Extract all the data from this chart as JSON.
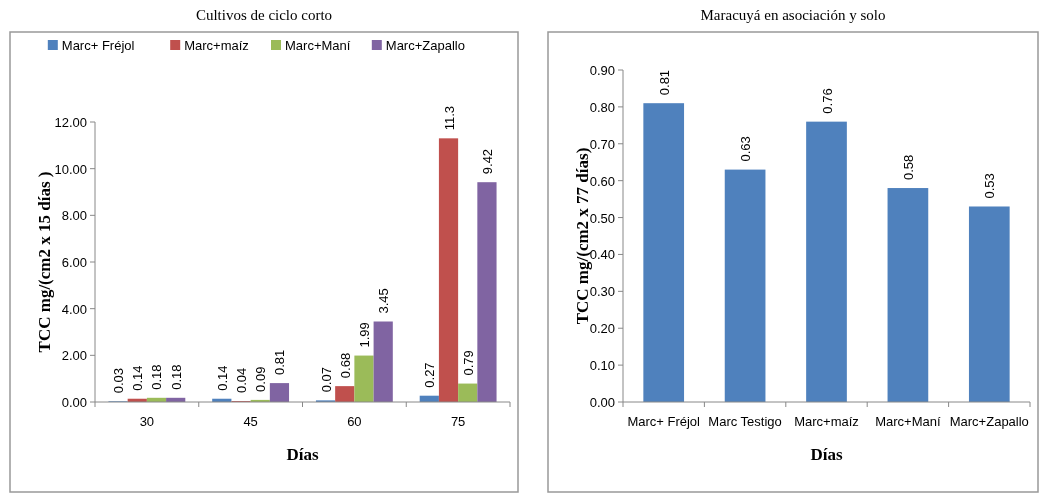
{
  "chart_data": [
    {
      "type": "bar",
      "title": "Cultivos de ciclo corto",
      "xlabel": "Días",
      "ylabel": "TCC  mg/(cm2  x 15 días )",
      "categories": [
        "30",
        "45",
        "60",
        "75"
      ],
      "series": [
        {
          "name": "Marc+ Fréjol",
          "color": "#4f81bd",
          "values": [
            0.03,
            0.14,
            0.07,
            0.27
          ]
        },
        {
          "name": "Marc+maíz",
          "color": "#c0504d",
          "values": [
            0.14,
            0.04,
            0.68,
            11.3
          ]
        },
        {
          "name": "Marc+Maní",
          "color": "#9bbb59",
          "values": [
            0.18,
            0.09,
            1.99,
            0.79
          ]
        },
        {
          "name": "Marc+Zapallo",
          "color": "#8064a2",
          "values": [
            0.18,
            0.81,
            3.45,
            9.42
          ]
        }
      ],
      "ylim": [
        0,
        12
      ],
      "yticks": [
        {
          "value": 0,
          "label": "0.00"
        },
        {
          "value": 2,
          "label": "2.00"
        },
        {
          "value": 4,
          "label": "4.00"
        },
        {
          "value": 6,
          "label": "6.00"
        },
        {
          "value": 8,
          "label": "8.00"
        },
        {
          "value": 10,
          "label": "10.00"
        },
        {
          "value": 12,
          "label": "12.00"
        }
      ],
      "data_labels": true,
      "legend": "top",
      "grid": false
    },
    {
      "type": "bar",
      "title": "Maracuyá en asociación y solo",
      "xlabel": "Días",
      "ylabel": "TCC  mg/(cm2  x 77 días)",
      "categories": [
        "Marc+ Fréjol",
        "Marc Testigo",
        "Marc+maíz",
        "Marc+Maní",
        "Marc+Zapallo"
      ],
      "series": [
        {
          "color": "#4f81bd",
          "values": [
            0.81,
            0.63,
            0.76,
            0.58,
            0.53
          ]
        }
      ],
      "ylim": [
        0,
        0.9
      ],
      "yticks": [
        {
          "value": 0,
          "label": "0.00"
        },
        {
          "value": 0.1,
          "label": "0.10"
        },
        {
          "value": 0.2,
          "label": "0.20"
        },
        {
          "value": 0.3,
          "label": "0.30"
        },
        {
          "value": 0.4,
          "label": "0.40"
        },
        {
          "value": 0.5,
          "label": "0.50"
        },
        {
          "value": 0.6,
          "label": "0.60"
        },
        {
          "value": 0.7,
          "label": "0.70"
        },
        {
          "value": 0.8,
          "label": "0.80"
        },
        {
          "value": 0.9,
          "label": "0.90"
        }
      ],
      "data_labels": true,
      "legend": false,
      "grid": false
    }
  ]
}
